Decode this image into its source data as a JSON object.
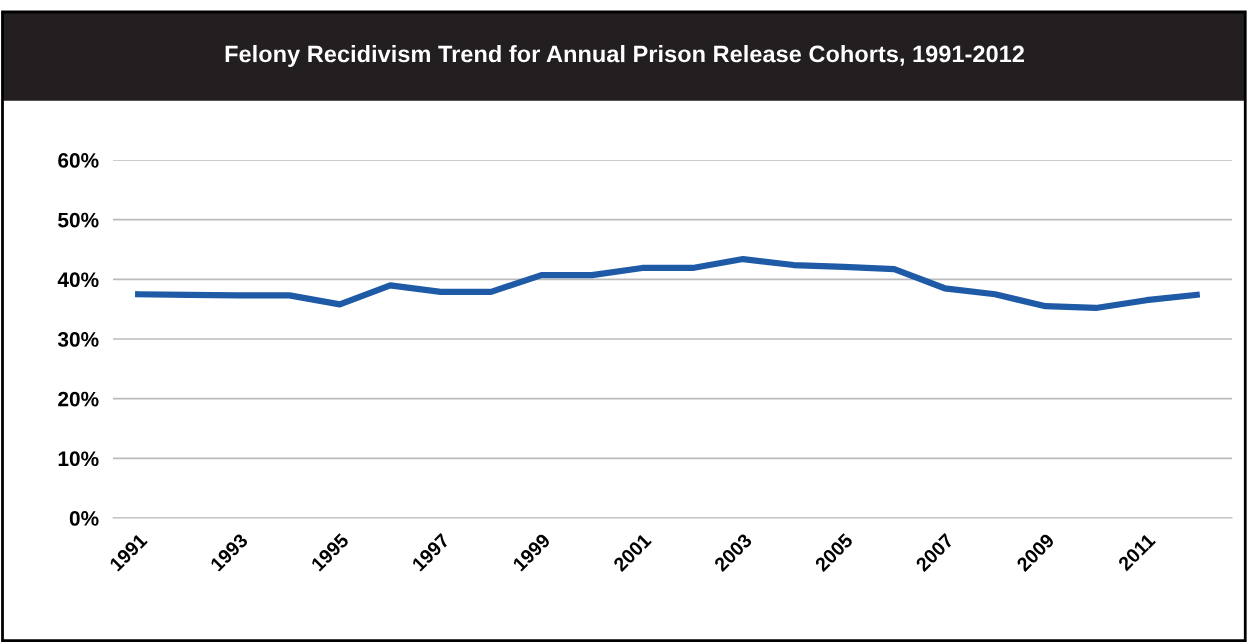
{
  "chart_data": {
    "type": "line",
    "title": "Felony Recidivism Trend for Annual Prison Release Cohorts, 1991-2012",
    "categories": [
      "1991",
      null,
      "1993",
      null,
      "1995",
      null,
      "1997",
      null,
      "1999",
      null,
      "2001",
      null,
      "2003",
      null,
      "2005",
      null,
      "2007",
      null,
      "2009",
      null,
      "2011",
      null
    ],
    "series": [
      {
        "color": "#1f5aa6",
        "values": [
          37.5,
          37.4,
          37.3,
          37.3,
          35.8,
          39.0,
          37.9,
          37.9,
          40.7,
          40.7,
          41.9,
          41.9,
          43.4,
          42.4,
          42.1,
          41.7,
          38.5,
          37.5,
          35.5,
          35.2,
          36.5,
          37.4
        ]
      }
    ],
    "ylim": [
      0,
      60
    ],
    "yticks": [
      {
        "value": 0,
        "label": "0%"
      },
      {
        "value": 10,
        "label": "10%"
      },
      {
        "value": 20,
        "label": "20%"
      },
      {
        "value": 30,
        "label": "30%"
      },
      {
        "value": 40,
        "label": "40%"
      },
      {
        "value": 50,
        "label": "50%"
      },
      {
        "value": 60,
        "label": "60%"
      }
    ],
    "grid": "y",
    "legend": false,
    "marker": "none",
    "line_style": "solid"
  }
}
